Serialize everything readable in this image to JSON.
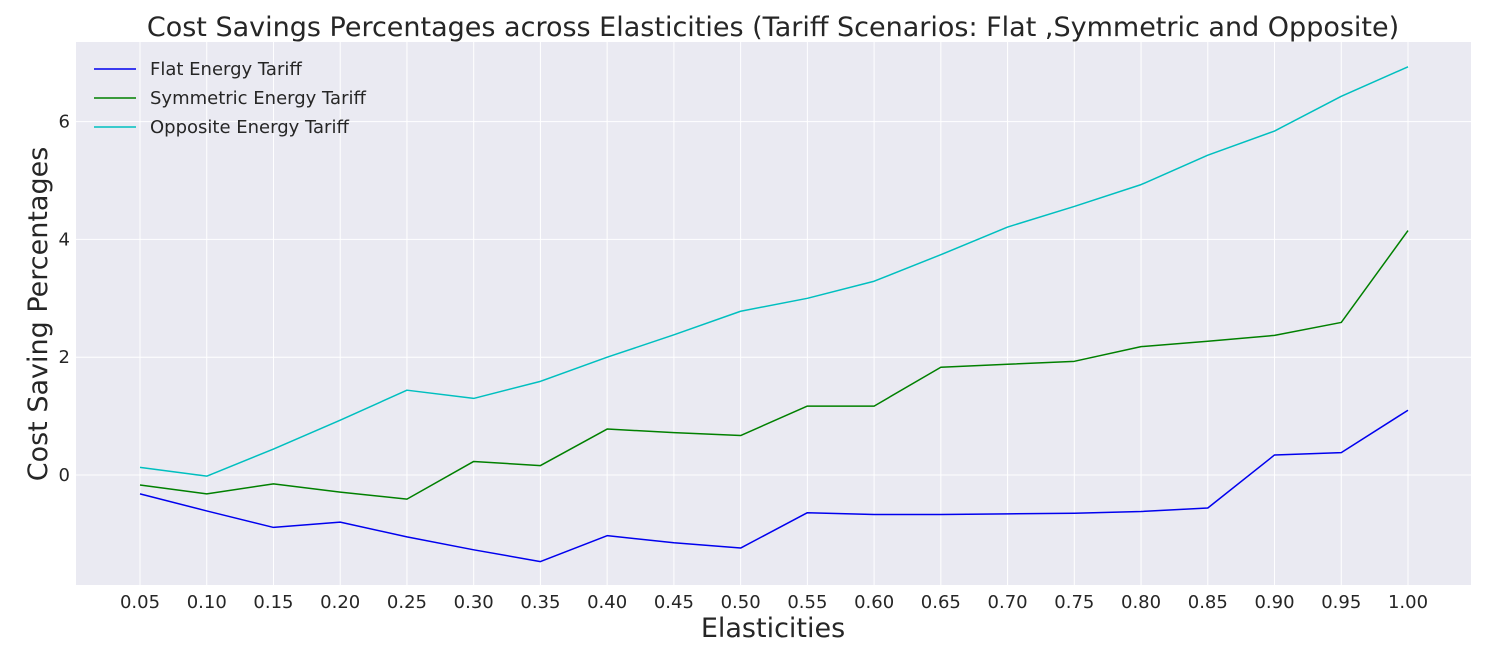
{
  "chart_data": {
    "type": "line",
    "title": "Cost Savings Percentages across Elasticities (Tariff Scenarios: Flat ,Symmetric and Opposite)",
    "xlabel": "Elasticities",
    "ylabel": "Cost Saving Percentages",
    "x": [
      "0.05",
      "0.10",
      "0.15",
      "0.20",
      "0.25",
      "0.30",
      "0.35",
      "0.40",
      "0.45",
      "0.50",
      "0.55",
      "0.60",
      "0.65",
      "0.70",
      "0.75",
      "0.80",
      "0.85",
      "0.90",
      "0.95",
      "1.00"
    ],
    "y_ticks": [
      "0",
      "2",
      "4",
      "6"
    ],
    "ylim": [
      -1.85,
      7.35
    ],
    "grid": true,
    "legend_position": "top-left",
    "series": [
      {
        "name": "Flat Energy Tariff",
        "color": "#0000ee",
        "values": [
          -0.32,
          -0.61,
          -0.89,
          -0.8,
          -1.05,
          -1.27,
          -1.47,
          -1.03,
          -1.15,
          -1.24,
          -0.64,
          -0.67,
          -0.67,
          -0.66,
          -0.65,
          -0.62,
          -0.56,
          0.34,
          0.38,
          1.1
        ]
      },
      {
        "name": "Symmetric Energy Tariff",
        "color": "#008000",
        "values": [
          -0.17,
          -0.32,
          -0.15,
          -0.29,
          -0.41,
          0.23,
          0.16,
          0.78,
          0.72,
          0.67,
          1.17,
          1.17,
          1.83,
          1.88,
          1.93,
          2.18,
          2.27,
          2.37,
          2.59,
          4.15
        ]
      },
      {
        "name": "Opposite Energy Tariff",
        "color": "#00bfbf",
        "values": [
          0.13,
          -0.02,
          0.44,
          0.93,
          1.44,
          1.3,
          1.59,
          2.0,
          2.38,
          2.78,
          3.0,
          3.29,
          3.74,
          4.21,
          4.56,
          4.93,
          5.43,
          5.84,
          6.43,
          6.93
        ]
      }
    ]
  }
}
